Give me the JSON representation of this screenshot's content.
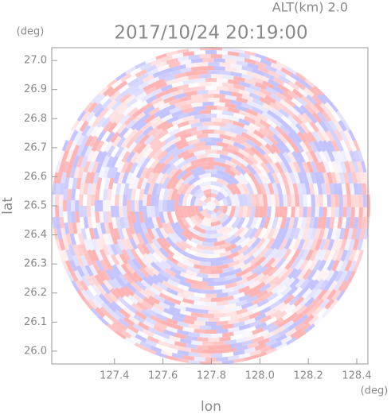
{
  "chart_data": {
    "type": "radar",
    "title": "2017/10/24 20:19:00",
    "subtitle": "ALT(km) 2.0",
    "xlabel": "lon",
    "ylabel": "lat",
    "xunit": "(deg)",
    "yunit": "(deg)",
    "xlim": [
      127.141,
      128.446
    ],
    "ylim": [
      25.956,
      27.044
    ],
    "xticks": [
      127.4,
      127.6,
      127.8,
      {
        "value": 128.0,
        "label": "128.0"
      },
      128.2,
      128.4
    ],
    "yticks": [
      {
        "value": 26.0,
        "label": "26.0"
      },
      26.1,
      26.2,
      26.3,
      26.4,
      26.5,
      26.6,
      26.7,
      26.8,
      26.9,
      {
        "value": 27.0,
        "label": "27.0"
      }
    ]
  }
}
